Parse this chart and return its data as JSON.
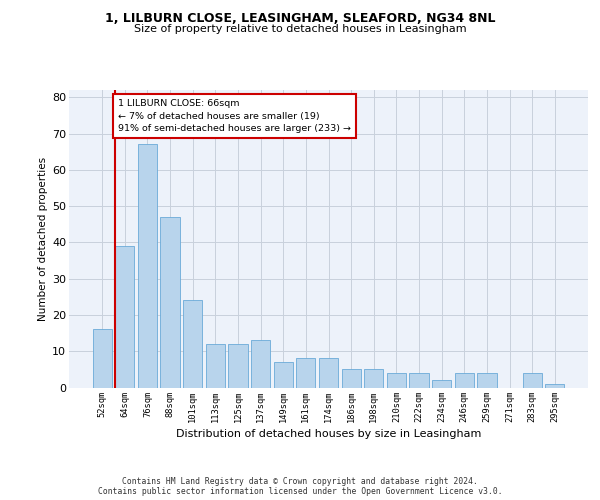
{
  "title1": "1, LILBURN CLOSE, LEASINGHAM, SLEAFORD, NG34 8NL",
  "title2": "Size of property relative to detached houses in Leasingham",
  "xlabel": "Distribution of detached houses by size in Leasingham",
  "ylabel": "Number of detached properties",
  "categories": [
    "52sqm",
    "64sqm",
    "76sqm",
    "88sqm",
    "101sqm",
    "113sqm",
    "125sqm",
    "137sqm",
    "149sqm",
    "161sqm",
    "174sqm",
    "186sqm",
    "198sqm",
    "210sqm",
    "222sqm",
    "234sqm",
    "246sqm",
    "259sqm",
    "271sqm",
    "283sqm",
    "295sqm"
  ],
  "values": [
    16,
    39,
    67,
    47,
    24,
    12,
    12,
    13,
    7,
    8,
    8,
    5,
    5,
    4,
    4,
    2,
    4,
    4,
    0,
    4,
    1
  ],
  "bar_color": "#b8d4ec",
  "bar_edge_color": "#6aaad8",
  "marker_line_color": "#cc0000",
  "annotation_text": "1 LILBURN CLOSE: 66sqm\n← 7% of detached houses are smaller (19)\n91% of semi-detached houses are larger (233) →",
  "annotation_box_facecolor": "#ffffff",
  "annotation_box_edgecolor": "#cc0000",
  "ylim": [
    0,
    82
  ],
  "yticks": [
    0,
    10,
    20,
    30,
    40,
    50,
    60,
    70,
    80
  ],
  "footer1": "Contains HM Land Registry data © Crown copyright and database right 2024.",
  "footer2": "Contains public sector information licensed under the Open Government Licence v3.0.",
  "bg_color": "#edf2fa",
  "grid_color": "#c8d0dc"
}
